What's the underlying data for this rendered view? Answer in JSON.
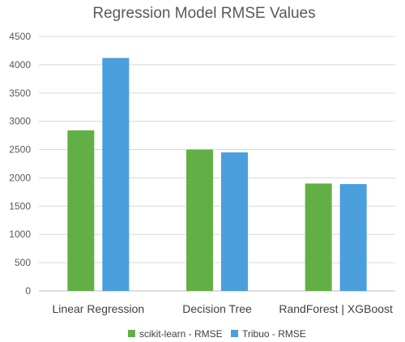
{
  "chart_data": {
    "type": "bar",
    "title": "Regression Model RMSE Values",
    "categories": [
      "Linear Regression",
      "Decision Tree",
      "RandForest | XGBoost"
    ],
    "series": [
      {
        "name": "scikit-learn - RMSE",
        "color": "#62b045",
        "values": [
          2840,
          2500,
          1900
        ]
      },
      {
        "name": "Tribuo - RMSE",
        "color": "#4a9fdc",
        "values": [
          4120,
          2450,
          1890
        ]
      }
    ],
    "ylim": [
      0,
      4500
    ],
    "yticks": [
      0,
      500,
      1000,
      1500,
      2000,
      2500,
      3000,
      3500,
      4000,
      4500
    ],
    "grid": true,
    "legend_position": "bottom",
    "gridline_color": "#d9d9d9"
  }
}
